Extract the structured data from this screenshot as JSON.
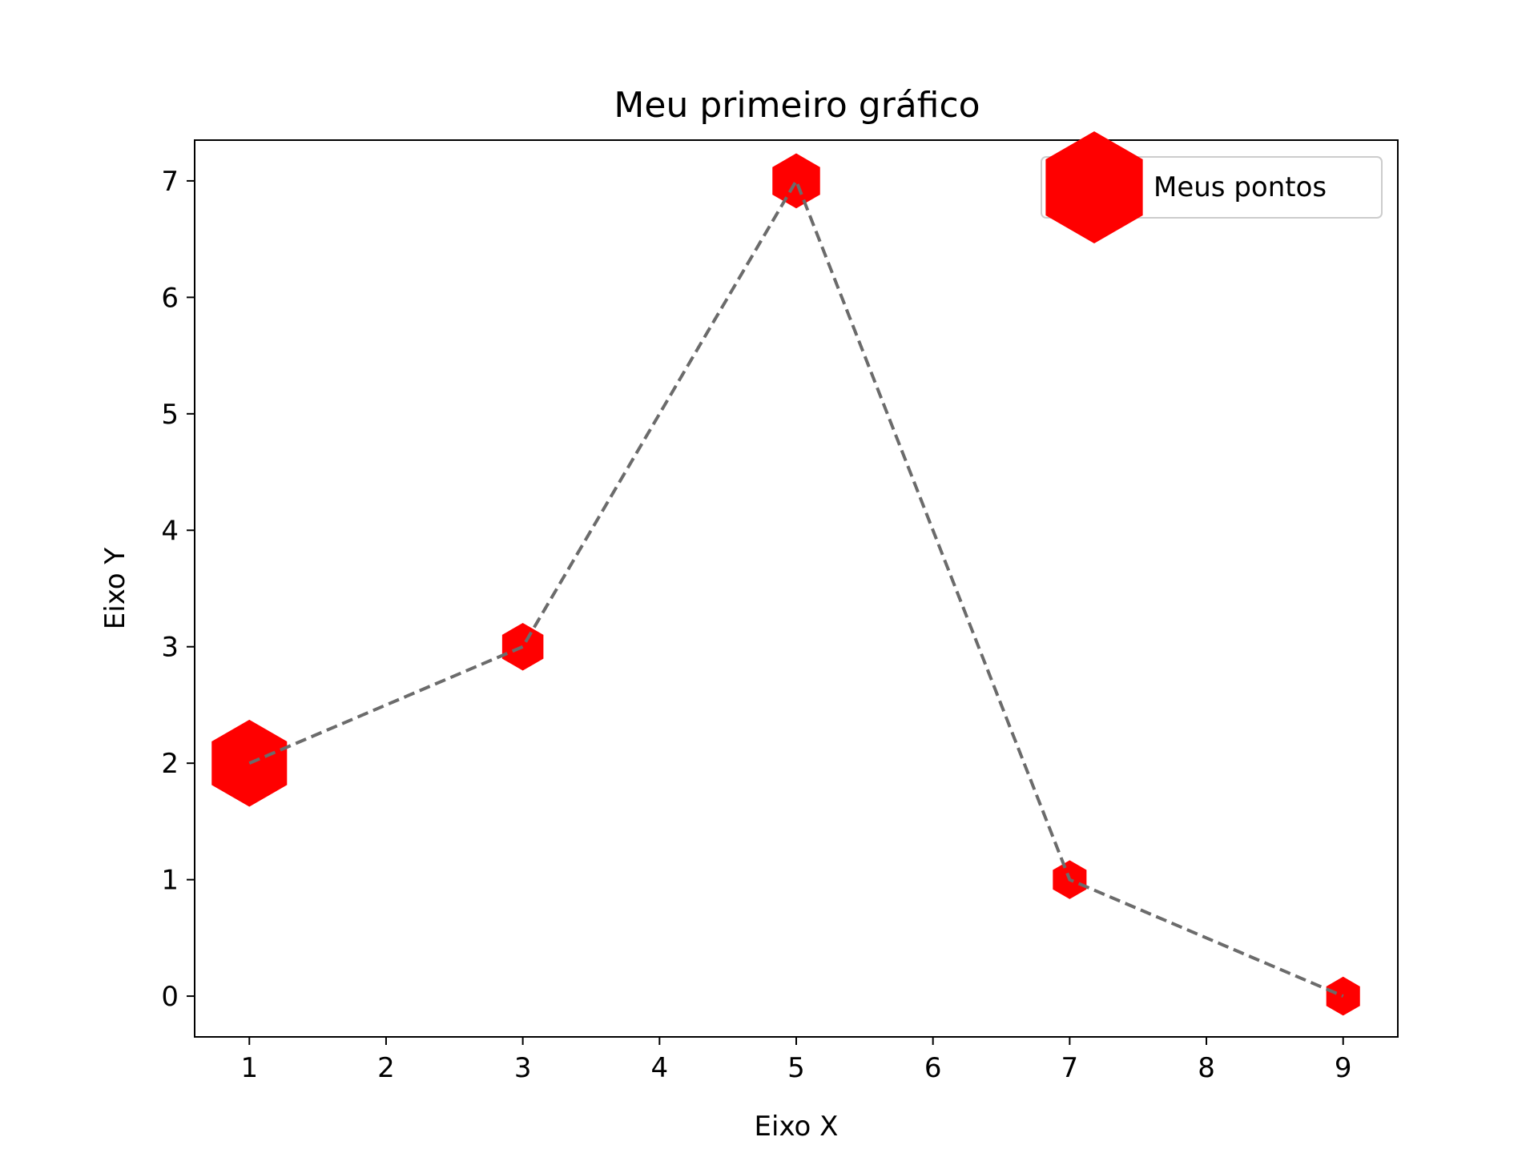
{
  "chart_data": {
    "type": "scatter",
    "title": "Meu primeiro gráfico",
    "xlabel": "Eixo X",
    "ylabel": "Eixo Y",
    "xlim": [
      0.6,
      9.4
    ],
    "ylim": [
      -0.35,
      7.35
    ],
    "x_ticks": [
      1,
      2,
      3,
      4,
      5,
      6,
      7,
      8,
      9
    ],
    "y_ticks": [
      0,
      1,
      2,
      3,
      4,
      5,
      6,
      7
    ],
    "grid": false,
    "legend_position": "top-right",
    "series": [
      {
        "name": "Meus pontos",
        "x": [
          1,
          3,
          5,
          7,
          9
        ],
        "y": [
          2,
          3,
          7,
          1,
          0
        ],
        "marker": "hexagon",
        "marker_color": "#ff0000",
        "marker_sizes": [
          10,
          3,
          4,
          2,
          2
        ],
        "line_style": "dashed",
        "line_color": "#6b6b6b"
      }
    ]
  }
}
